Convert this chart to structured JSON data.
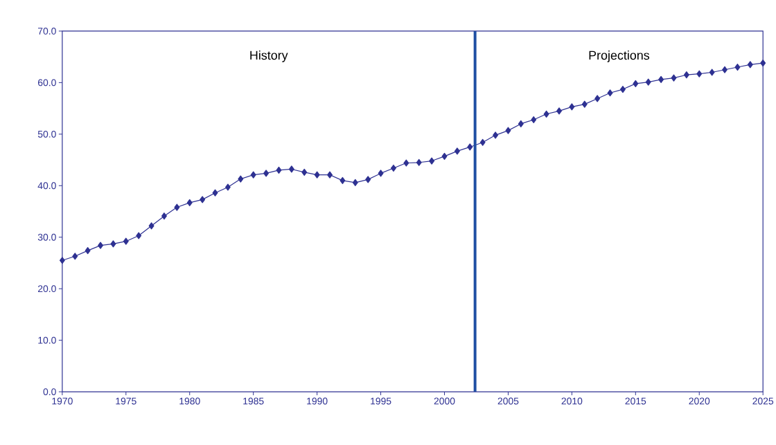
{
  "chart_data": {
    "type": "line",
    "x": [
      1970,
      1971,
      1972,
      1973,
      1974,
      1975,
      1976,
      1977,
      1978,
      1979,
      1980,
      1981,
      1982,
      1983,
      1984,
      1985,
      1986,
      1987,
      1988,
      1989,
      1990,
      1991,
      1992,
      1993,
      1994,
      1995,
      1996,
      1997,
      1998,
      1999,
      2000,
      2001,
      2002,
      2003,
      2004,
      2005,
      2006,
      2007,
      2008,
      2009,
      2010,
      2011,
      2012,
      2013,
      2014,
      2015,
      2016,
      2017,
      2018,
      2019,
      2020,
      2021,
      2022,
      2023,
      2024,
      2025
    ],
    "series": [
      {
        "color": "#2e3192",
        "values": [
          25.5,
          26.3,
          27.4,
          28.4,
          28.7,
          29.2,
          30.3,
          32.2,
          34.1,
          35.8,
          36.7,
          37.3,
          38.6,
          39.7,
          41.3,
          42.1,
          42.4,
          43.0,
          43.2,
          42.6,
          42.1,
          42.1,
          41.0,
          40.6,
          41.2,
          42.4,
          43.4,
          44.4,
          44.5,
          44.8,
          45.7,
          46.7,
          47.5,
          48.4,
          49.8,
          50.7,
          52.0,
          52.8,
          53.9,
          54.5,
          55.3,
          55.8,
          56.9,
          58.0,
          58.7,
          59.8,
          60.1,
          60.6,
          60.9,
          61.5,
          61.7,
          62.0,
          62.5,
          63.0,
          63.5,
          63.8
        ]
      }
    ],
    "xlim": [
      1970,
      2025
    ],
    "xticks": [
      1970,
      1975,
      1980,
      1985,
      1990,
      1995,
      2000,
      2005,
      2010,
      2015,
      2020,
      2025
    ],
    "ylim": [
      0,
      70
    ],
    "yticks": [
      {
        "value": 0,
        "label": "0.0"
      },
      {
        "value": 10,
        "label": "10.0"
      },
      {
        "value": 20,
        "label": "20.0"
      },
      {
        "value": 30,
        "label": "30.0"
      },
      {
        "value": 40,
        "label": "40.0"
      },
      {
        "value": 50,
        "label": "50.0"
      },
      {
        "value": 60,
        "label": "60.0"
      },
      {
        "value": 70,
        "label": "70.0"
      }
    ],
    "ref_lines": [
      {
        "axis": "x",
        "value": 2002.4,
        "color": "#1f4fa3"
      }
    ],
    "annotations": [
      "History",
      "Projections"
    ],
    "marker": "diamond"
  }
}
